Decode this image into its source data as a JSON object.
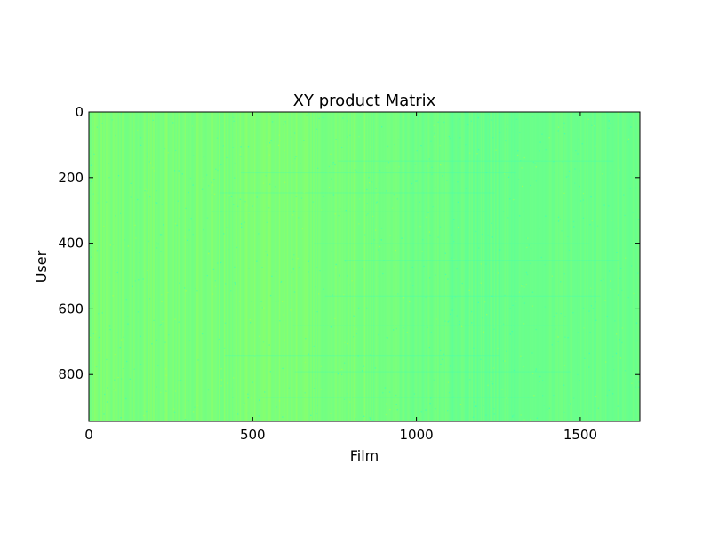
{
  "chart_data": {
    "type": "heatmap",
    "title": "XY product Matrix",
    "xlabel": "Film",
    "ylabel": "User",
    "xlim": [
      0,
      1682
    ],
    "ylim": [
      943,
      0
    ],
    "y_inverted": true,
    "x_ticks": [
      0,
      500,
      1000,
      1500
    ],
    "y_ticks": [
      0,
      200,
      400,
      600,
      800
    ],
    "grid": false,
    "colormap": "jet",
    "colors": {
      "green_yellow": "#7dff7a",
      "mid_green": "#73ff83",
      "aqua_green": "#66ff90",
      "yellow_green": "#90ff66",
      "cyan_green": "#5cff9a",
      "dark_cyan": "#3dffba",
      "light_yellow": "#a6ff50",
      "axes_edge": "#000000"
    }
  }
}
